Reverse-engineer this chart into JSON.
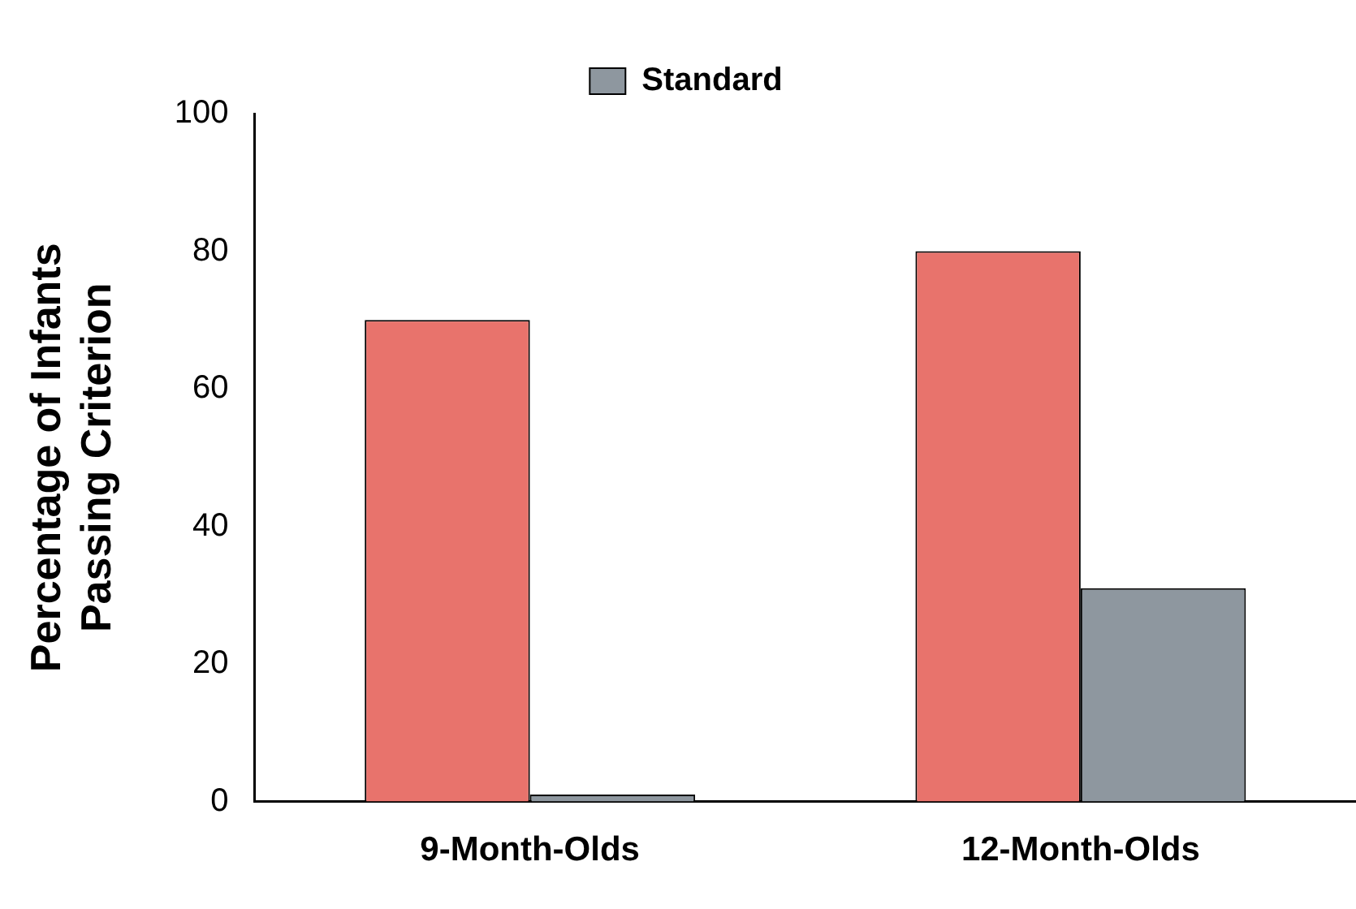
{
  "chart_data": {
    "type": "bar",
    "ylabel": "Percentage of Infants\nPassing Criterion",
    "categories": [
      "9-Month-Olds",
      "12-Month-Olds"
    ],
    "series": [
      {
        "color": "#e8736c",
        "values": [
          70,
          80
        ]
      },
      {
        "name": "Standard",
        "color": "#8e979f",
        "values": [
          1,
          31
        ]
      }
    ],
    "ylim": [
      0,
      100
    ],
    "yticks": [
      0,
      20,
      40,
      60,
      80,
      100
    ],
    "grid": false,
    "legend": "top"
  }
}
